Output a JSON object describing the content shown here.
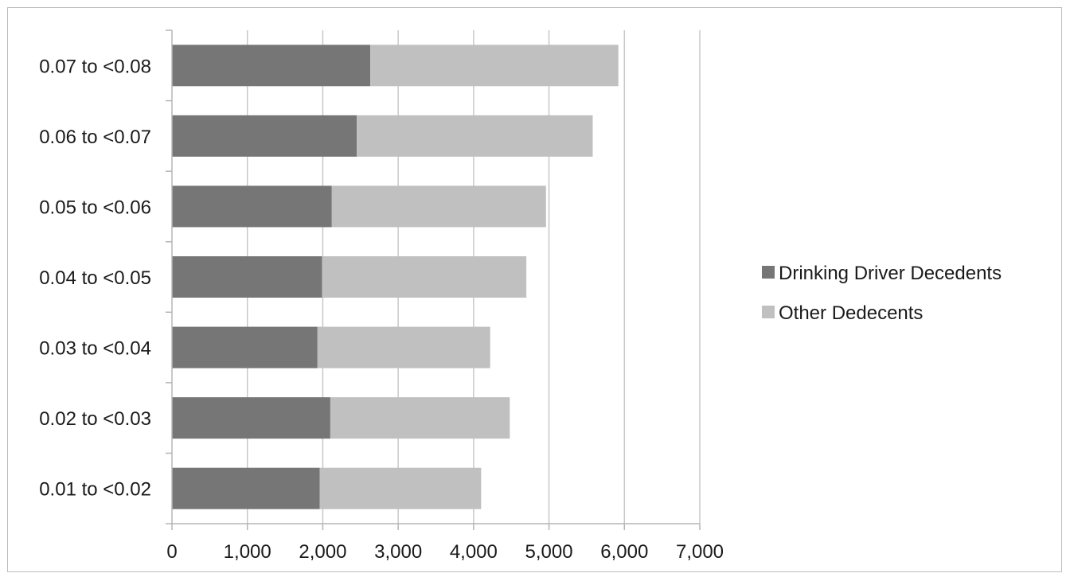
{
  "chart_data": {
    "type": "bar",
    "orientation": "horizontal",
    "stacked": true,
    "categories": [
      "0.01 to <0.02",
      "0.02 to <0.03",
      "0.03 to <0.04",
      "0.04 to <0.05",
      "0.05 to <0.06",
      "0.06 to <0.07",
      "0.07 to <0.08"
    ],
    "series": [
      {
        "name": "Drinking Driver Decedents",
        "values": [
          1960,
          2100,
          1930,
          1990,
          2120,
          2450,
          2630
        ],
        "color": "#767676"
      },
      {
        "name": "Other Dedecents",
        "values": [
          2140,
          2380,
          2290,
          2710,
          2840,
          3130,
          3290
        ],
        "color": "#c0c0c0"
      }
    ],
    "xlim": [
      0,
      7000
    ],
    "xticks": [
      0,
      1000,
      2000,
      3000,
      4000,
      5000,
      6000,
      7000
    ],
    "xtick_labels": [
      "0",
      "1,000",
      "2,000",
      "3,000",
      "4,000",
      "5,000",
      "6,000",
      "7,000"
    ],
    "grid": true,
    "legend_position": "right",
    "title": "",
    "xlabel": "",
    "ylabel": ""
  }
}
